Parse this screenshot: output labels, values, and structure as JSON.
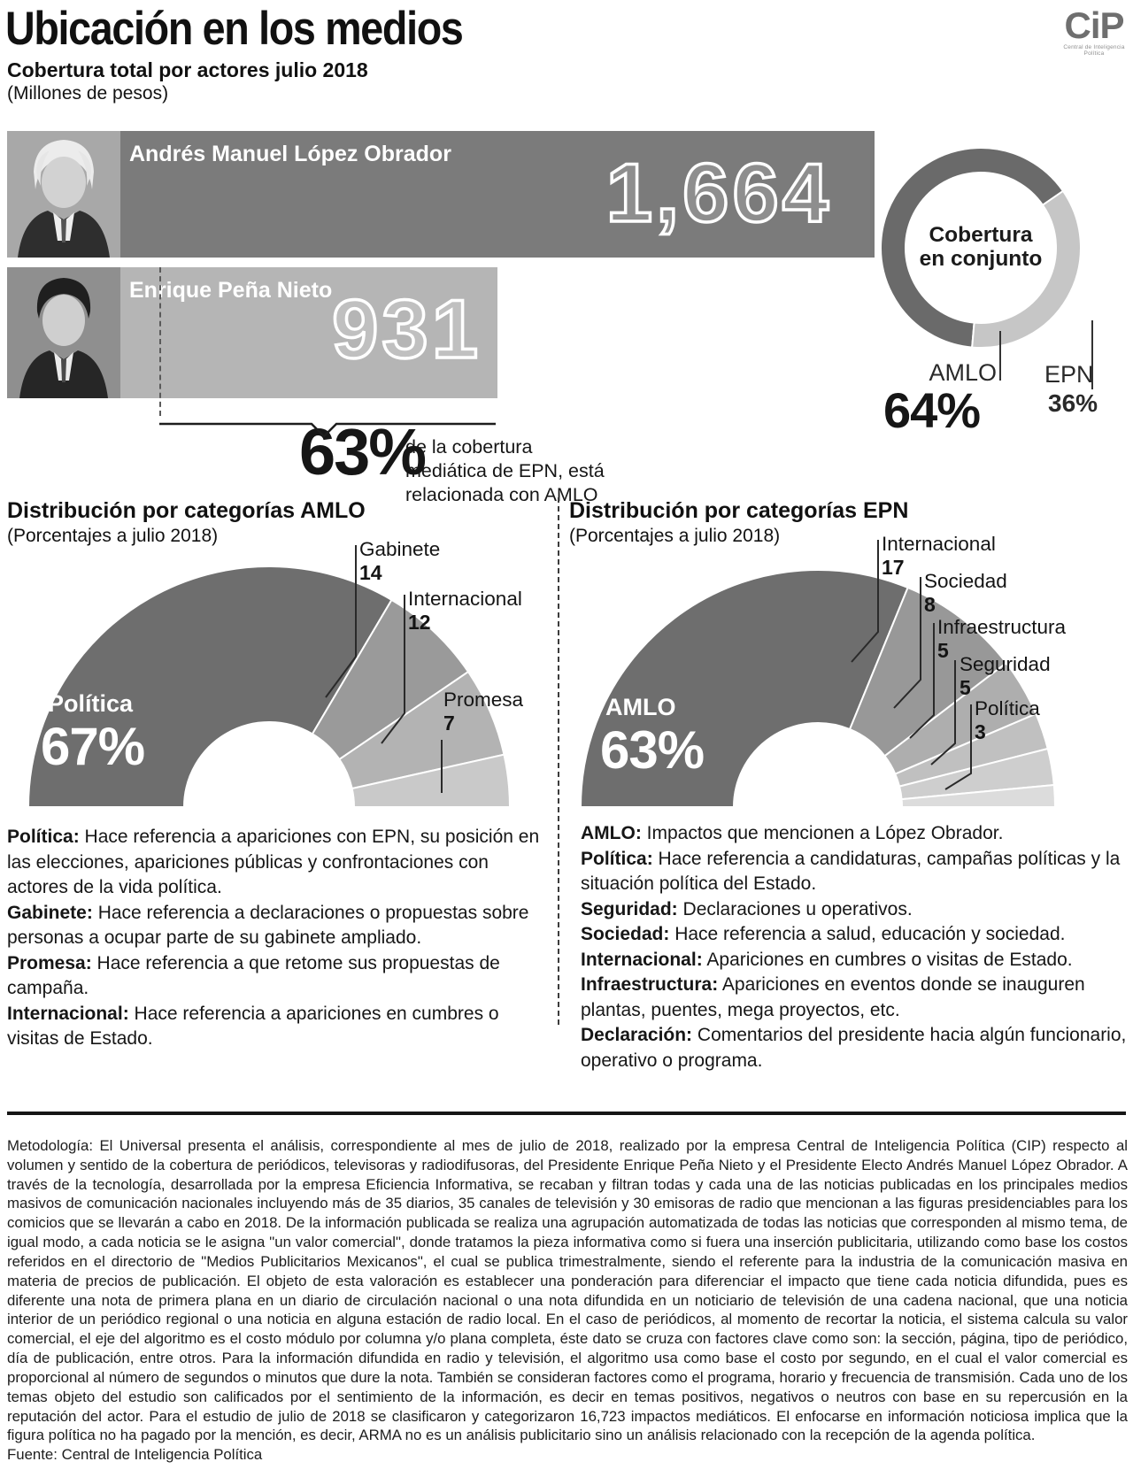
{
  "header": {
    "title": "Ubicación en los medios",
    "subtitle": "Cobertura total por actores julio 2018",
    "units": "(Millones de pesos)",
    "logo": {
      "text": "CiP",
      "subtext": "Central de Inteligencia Política"
    }
  },
  "chart_data": [
    {
      "type": "bar",
      "orientation": "horizontal",
      "title": "Cobertura total por actores julio 2018",
      "ylabel": "Millones de pesos",
      "categories": [
        "Andrés Manuel López Obrador",
        "Enrique Peña Nieto"
      ],
      "values": [
        1664,
        931
      ],
      "value_labels": [
        "1,664",
        "931"
      ],
      "bar_colors": [
        "#7b7b7b",
        "#b5b5b5"
      ],
      "annotation": {
        "big": "63%",
        "text": "de la cobertura mediática de EPN, está relacionada con AMLO"
      }
    },
    {
      "type": "pie",
      "subtype": "donut",
      "title": "Cobertura en conjunto",
      "labels": [
        "AMLO",
        "EPN"
      ],
      "values": [
        64,
        36
      ],
      "value_labels": [
        "64%",
        "36%"
      ],
      "colors": [
        "#6a6a6a",
        "#c6c6c6"
      ]
    },
    {
      "type": "pie",
      "subtype": "semi-donut",
      "title": "Distribución por categorías AMLO",
      "subtitle": "(Porcentajes a julio 2018)",
      "labels": [
        "Política",
        "Gabinete",
        "Internacional",
        "Promesa"
      ],
      "values": [
        67,
        14,
        12,
        7
      ],
      "value_labels": [
        "67%",
        "14",
        "12",
        "7"
      ],
      "colors": [
        "#6e6e6e",
        "#9a9a9a",
        "#b3b3b3",
        "#c9c9c9"
      ]
    },
    {
      "type": "pie",
      "subtype": "semi-donut",
      "title": "Distribución por categorías EPN",
      "subtitle": "(Porcentajes a julio 2018)",
      "labels": [
        "AMLO",
        "Internacional",
        "Sociedad",
        "Infraestructura",
        "Seguridad",
        "Política"
      ],
      "values": [
        63,
        17,
        8,
        5,
        5,
        3
      ],
      "value_labels": [
        "63%",
        "17",
        "8",
        "5",
        "5",
        "3"
      ],
      "colors": [
        "#6e6e6e",
        "#989898",
        "#aeaeae",
        "#c0c0c0",
        "#cecece",
        "#dcdcdc"
      ]
    }
  ],
  "definitions_left": [
    {
      "term": "Política:",
      "text": " Hace referencia a apariciones con EPN, su posición en las elecciones, apariciones públicas y confrontaciones con actores de la vida política."
    },
    {
      "term": "Gabinete:",
      "text": " Hace referencia a declaraciones o propuestas sobre personas a ocupar parte de su gabinete ampliado."
    },
    {
      "term": "Promesa:",
      "text": " Hace referencia a que retome sus propuestas de campaña."
    },
    {
      "term": "Internacional:",
      "text": " Hace referencia a apariciones en cumbres o visitas de Estado."
    }
  ],
  "definitions_right": [
    {
      "term": "AMLO:",
      "text": " Impactos que mencionen a López Obrador."
    },
    {
      "term": "Política:",
      "text": " Hace referencia a candidaturas, campañas políticas y la situación política del Estado."
    },
    {
      "term": "Seguridad:",
      "text": " Declaraciones u operativos."
    },
    {
      "term": "Sociedad:",
      "text": " Hace referencia a salud, educación y sociedad."
    },
    {
      "term": "Internacional:",
      "text": " Apariciones en cumbres o visitas de Estado."
    },
    {
      "term": "Infraestructura:",
      "text": " Apariciones en eventos donde se inauguren plantas, puentes, mega proyectos, etc."
    },
    {
      "term": "Declaración:",
      "text": " Comentarios del presidente hacia algún funcionario, operativo o programa."
    }
  ],
  "methodology": "Metodología: El Universal presenta el análisis, correspondiente al mes de julio de 2018, realizado por la empresa Central de Inteligencia Política (CIP) respecto al volumen y sentido de la cobertura de periódicos, televisoras y radiodifusoras, del Presidente Enrique Peña Nieto y el Presidente Electo Andrés Manuel López Obrador. A través de la tecnología, desarrollada por la empresa Eficiencia Informativa, se recaban y filtran todas y cada una de las noticias publicadas en los principales medios masivos de comunicación nacionales incluyendo más de 35 diarios, 35 canales de televisión y 30 emisoras de radio que mencionan a las figuras presidenciables para los comicios que se llevarán a cabo en 2018. De la información publicada se realiza una agrupación automatizada de todas las noticias que corresponden al mismo tema, de igual modo, a cada noticia se le asigna \"un valor comercial\", donde tratamos la pieza informativa como si fuera una inserción publicitaria, utilizando como base los costos referidos en el directorio de \"Medios Publicitarios Mexicanos\", el cual se publica trimestralmente, siendo el referente para la industria de la comunicación masiva en materia de precios de publicación. El objeto de esta valoración es establecer una ponderación para diferenciar el impacto que tiene cada noticia difundida, pues es diferente una nota de primera plana en un diario de circulación nacional o una nota difundida en un noticiario de televisión de una cadena nacional, que una noticia interior de un periódico regional o una noticia en alguna estación de radio local. En el caso de periódicos, al momento de recortar la noticia, el sistema calcula su valor comercial, el eje del algoritmo es el costo módulo por columna y/o plana completa, éste dato se cruza con factores clave como son: la sección, página, tipo de periódico, día de publicación, entre otros. Para la información difundida en radio y televisión, el algoritmo usa como base el costo por segundo, en el cual el valor comercial es proporcional al número de segundos o minutos que dure la nota. También se consideran factores como el programa, horario y frecuencia de transmisión. Cada uno de los temas objeto del estudio son calificados por el sentimiento de la información, es decir en temas positivos, negativos o neutros con base en su repercusión en la reputación del actor. Para el estudio de julio de 2018 se clasificaron y categorizaron 16,723 impactos mediáticos. El enfocarse en información noticiosa implica que la figura política no ha pagado por la mención, es decir, ARMA no es un análisis publicitario sino un análisis relacionado con la recepción de la agenda política.",
  "fuente": "Fuente: Central de Inteligencia Política"
}
